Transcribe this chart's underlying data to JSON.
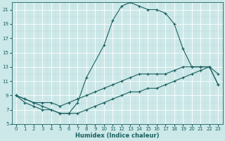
{
  "xlabel": "Humidex (Indice chaleur)",
  "bg_color": "#cce8e8",
  "grid_color": "#b0d0d0",
  "line_color": "#1a6060",
  "xlim": [
    -0.5,
    23.5
  ],
  "ylim": [
    5,
    22
  ],
  "yticks": [
    5,
    7,
    9,
    11,
    13,
    15,
    17,
    19,
    21
  ],
  "xticks": [
    0,
    1,
    2,
    3,
    4,
    5,
    6,
    7,
    8,
    9,
    10,
    11,
    12,
    13,
    14,
    15,
    16,
    17,
    18,
    19,
    20,
    21,
    22,
    23
  ],
  "series": [
    {
      "x": [
        0,
        1,
        2,
        3,
        4,
        5,
        6,
        7,
        8,
        9,
        10,
        11,
        12,
        13,
        14,
        15,
        16,
        17,
        18,
        19,
        20,
        21,
        22,
        23
      ],
      "y": [
        9,
        8.5,
        8,
        8,
        8,
        7.5,
        8,
        8.5,
        9,
        9.5,
        10,
        10.5,
        11,
        11.5,
        12,
        12,
        12,
        12,
        12.5,
        13,
        13,
        13,
        13,
        10.5
      ]
    },
    {
      "x": [
        0,
        1,
        2,
        3,
        4,
        5,
        6,
        7,
        8,
        9,
        10,
        11,
        12,
        13,
        14,
        15,
        16,
        17,
        18,
        19,
        20,
        21,
        22,
        23
      ],
      "y": [
        9,
        8,
        7.5,
        7,
        7,
        6.5,
        6.5,
        6.5,
        7,
        7.5,
        8,
        8.5,
        9,
        9.5,
        9.5,
        10,
        10,
        10.5,
        11,
        11.5,
        12,
        12.5,
        13,
        10.5
      ]
    },
    {
      "x": [
        0,
        1,
        2,
        3,
        5,
        6,
        7,
        8,
        10,
        11,
        12,
        13,
        14,
        15,
        16,
        17,
        18,
        19,
        20,
        21,
        22,
        23
      ],
      "y": [
        9,
        8.5,
        8,
        7.5,
        6.5,
        6.5,
        8,
        11.5,
        16,
        19.5,
        21.5,
        22,
        21.5,
        21,
        21,
        20.5,
        19,
        15.5,
        13,
        13,
        13,
        12
      ]
    }
  ]
}
